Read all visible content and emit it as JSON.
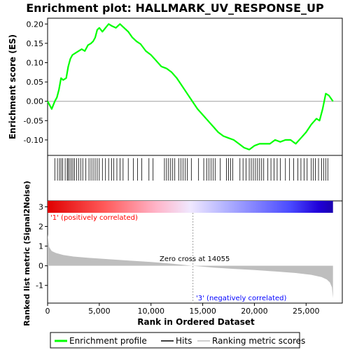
{
  "chart_data": {
    "type": "line",
    "title": "Enrichment plot: HALLMARK_UV_RESPONSE_UP",
    "panels": {
      "enrichment": {
        "ylabel": "Enrichment score (ES)",
        "ylim": [
          -0.14,
          0.215
        ],
        "yticks": [
          -0.1,
          -0.05,
          0.0,
          0.05,
          0.1,
          0.15,
          0.2
        ],
        "ytick_labels": [
          "-0.10",
          "-0.05",
          "0.00",
          "0.05",
          "0.10",
          "0.15",
          "0.20"
        ],
        "series": [
          {
            "name": "Enrichment profile",
            "color": "#00ff00",
            "x": [
              0,
              400,
              700,
              900,
              1100,
              1300,
              1500,
              1800,
              2000,
              2200,
              2400,
              2700,
              3000,
              3300,
              3600,
              3900,
              4200,
              4400,
              4600,
              4800,
              5000,
              5300,
              5600,
              5900,
              6200,
              6600,
              7000,
              7400,
              7800,
              8200,
              8600,
              9000,
              9500,
              10000,
              10500,
              11000,
              11500,
              12000,
              12500,
              13000,
              13500,
              14000,
              14500,
              15000,
              15500,
              16000,
              16500,
              17000,
              17500,
              18000,
              18500,
              19000,
              19500,
              20000,
              20500,
              21000,
              21500,
              22000,
              22500,
              23000,
              23500,
              24000,
              24500,
              25000,
              25500,
              26000,
              26300,
              26600,
              26900,
              27200,
              27600
            ],
            "y": [
              0.0,
              -0.02,
              0.0,
              0.01,
              0.03,
              0.06,
              0.055,
              0.06,
              0.09,
              0.11,
              0.12,
              0.125,
              0.13,
              0.135,
              0.13,
              0.145,
              0.15,
              0.155,
              0.165,
              0.185,
              0.19,
              0.18,
              0.19,
              0.2,
              0.195,
              0.19,
              0.2,
              0.19,
              0.18,
              0.165,
              0.155,
              0.148,
              0.13,
              0.12,
              0.105,
              0.09,
              0.085,
              0.075,
              0.06,
              0.04,
              0.02,
              0.0,
              -0.02,
              -0.035,
              -0.05,
              -0.065,
              -0.08,
              -0.09,
              -0.095,
              -0.1,
              -0.11,
              -0.12,
              -0.125,
              -0.115,
              -0.11,
              -0.11,
              -0.11,
              -0.1,
              -0.105,
              -0.1,
              -0.1,
              -0.11,
              -0.095,
              -0.08,
              -0.06,
              -0.045,
              -0.05,
              -0.02,
              0.02,
              0.015,
              0.0
            ]
          }
        ]
      },
      "hits": {
        "name": "Hits",
        "positions": [
          700,
          950,
          1150,
          1300,
          1450,
          1700,
          1900,
          2000,
          2150,
          2300,
          2450,
          2600,
          2800,
          3000,
          3200,
          3400,
          3700,
          4000,
          4200,
          4400,
          4600,
          4800,
          5000,
          5300,
          5600,
          5900,
          6200,
          6400,
          6700,
          7000,
          7300,
          7800,
          8300,
          8700,
          9100,
          9800,
          10200,
          11300,
          11500,
          11700,
          11900,
          12100,
          12300,
          12700,
          12900,
          13100,
          13300,
          13500,
          13900,
          14600,
          15100,
          15400,
          15600,
          15800,
          16000,
          16200,
          16700,
          17300,
          17500,
          17700,
          17900,
          18600,
          18900,
          19200,
          19500,
          19700,
          19900,
          20100,
          20300,
          20500,
          20700,
          20900,
          21300,
          21600,
          21900,
          22200,
          22500,
          23000,
          23400,
          23800,
          24200,
          24500,
          24800,
          25100,
          25500,
          25700,
          25900,
          26200,
          26500,
          26700,
          26900,
          27100
        ]
      },
      "ranking": {
        "name": "Ranking metric scores",
        "ylabel": "Ranked list metric (Signal2Noise)",
        "xlabel": "Rank in Ordered Dataset",
        "xlim": [
          0,
          28500
        ],
        "xticks": [
          0,
          5000,
          10000,
          15000,
          20000,
          25000
        ],
        "xtick_labels": [
          "0",
          "5,000",
          "10,000",
          "15,000",
          "20,000",
          "25,000"
        ],
        "ylim": [
          -1.9,
          3.3
        ],
        "yticks": [
          -1,
          0,
          1,
          2,
          3
        ],
        "ytick_labels": [
          "-1",
          "0",
          "1",
          "2",
          "3"
        ],
        "x": [
          0,
          150,
          400,
          800,
          1500,
          2500,
          4000,
          6000,
          8000,
          10000,
          12000,
          14055,
          16000,
          18000,
          20000,
          22000,
          24000,
          25500,
          26500,
          27000,
          27300,
          27500,
          27600
        ],
        "y": [
          1.6,
          0.95,
          0.75,
          0.65,
          0.55,
          0.47,
          0.4,
          0.33,
          0.26,
          0.19,
          0.11,
          0.0,
          -0.09,
          -0.16,
          -0.22,
          -0.29,
          -0.37,
          -0.46,
          -0.58,
          -0.7,
          -0.85,
          -1.1,
          -1.65
        ]
      }
    },
    "labels": {
      "pos": "'1' (positively correlated)",
      "neg": "'3' (negatively correlated)",
      "zero_cross": "Zero cross at 14055"
    },
    "zero_cross": 14055,
    "total": 27600,
    "legend": {
      "placement": "bottom",
      "items": [
        "Enrichment profile",
        "Hits",
        "Ranking metric scores"
      ]
    },
    "colors": {
      "profile": "#00ff00",
      "hits": "#000000",
      "ranking_fill": "#bebebe",
      "pos_label": "#ff0000",
      "neg_label": "#0000ff",
      "zero_label": "#000000"
    }
  }
}
